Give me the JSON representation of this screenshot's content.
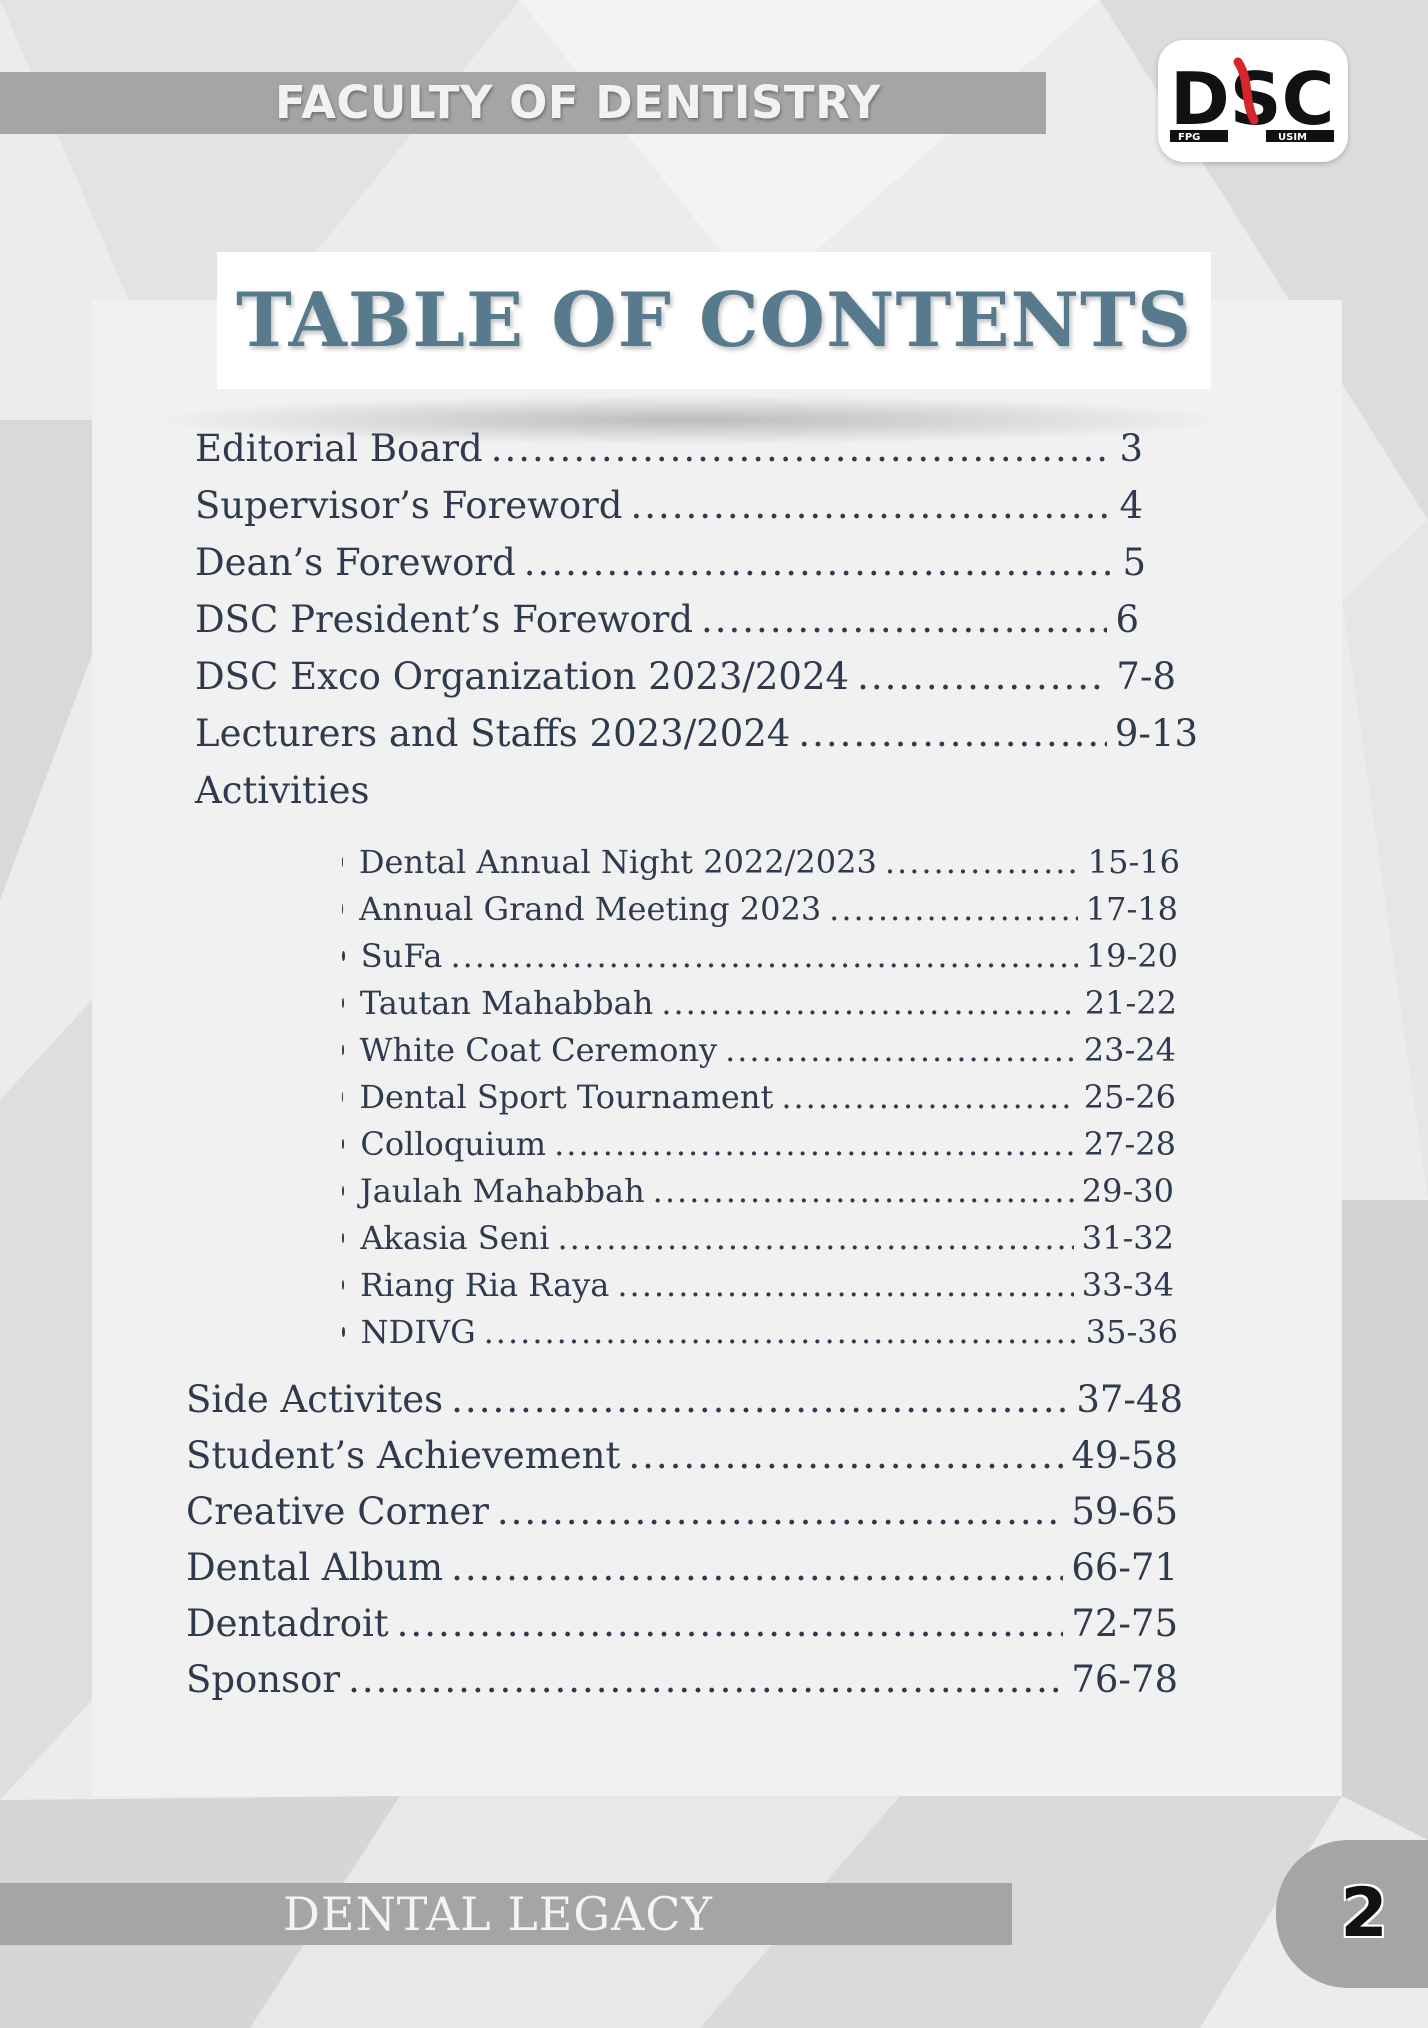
{
  "header": {
    "faculty": "FACULTY OF DENTISTRY"
  },
  "logo": {
    "main": "DSC",
    "left_tag": "FPG",
    "right_tag": "USIM"
  },
  "title": "TABLE OF CONTENTS",
  "toc": {
    "top": [
      {
        "label": "Editorial Board",
        "page": "3"
      },
      {
        "label": "Supervisor’s Foreword",
        "page": "4"
      },
      {
        "label": "Dean’s Foreword",
        "page": "5"
      },
      {
        "label": "DSC President’s Foreword",
        "page": "6"
      },
      {
        "label": "DSC Exco Organization 2023/2024",
        "page": "7-8"
      },
      {
        "label": "Lecturers and Staffs 2023/2024",
        "page": "9-13"
      }
    ],
    "activities_heading": "Activities",
    "activities": [
      {
        "label": "Dental Annual Night 2022/2023",
        "page": "15-16"
      },
      {
        "label": "Annual Grand Meeting 2023",
        "page": "17-18"
      },
      {
        "label": "SuFa",
        "page": "19-20"
      },
      {
        "label": "Tautan Mahabbah",
        "page": "21-22"
      },
      {
        "label": "White Coat Ceremony",
        "page": "23-24"
      },
      {
        "label": "Dental Sport Tournament",
        "page": "25-26"
      },
      {
        "label": "Colloquium",
        "page": "27-28"
      },
      {
        "label": "Jaulah Mahabbah",
        "page": "29-30"
      },
      {
        "label": "Akasia Seni",
        "page": "31-32"
      },
      {
        "label": "Riang Ria Raya",
        "page": "33-34"
      },
      {
        "label": "NDIVG",
        "page": "35-36"
      }
    ],
    "bottom": [
      {
        "label": "Side Activites",
        "page": "37-48"
      },
      {
        "label": "Student’s Achievement",
        "page": "49-58"
      },
      {
        "label": "Creative Corner",
        "page": "59-65"
      },
      {
        "label": "Dental Album",
        "page": "66-71"
      },
      {
        "label": "Dentadroit",
        "page": "72-75"
      },
      {
        "label": "Sponsor",
        "page": "76-78"
      }
    ]
  },
  "footer": {
    "title": "DENTAL LEGACY",
    "page_number": "2"
  },
  "colors": {
    "title": "#587a8d",
    "text": "#2f3a4e",
    "bar": "#a5a5a5",
    "logo_accent": "#d6262c"
  }
}
